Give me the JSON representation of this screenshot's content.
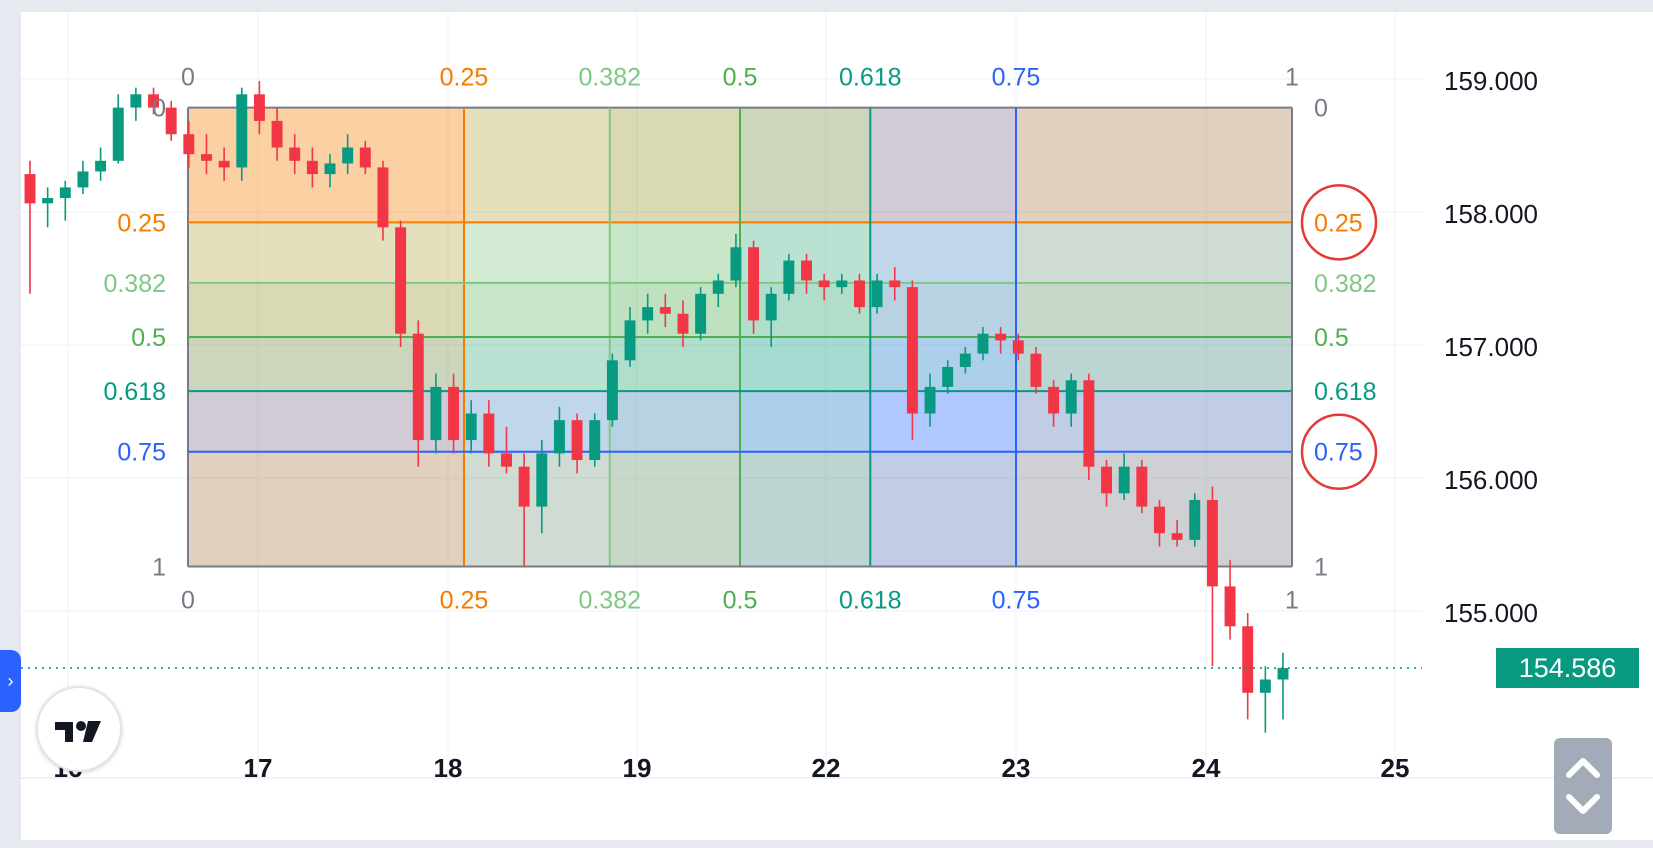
{
  "chart_data": {
    "type": "candlestick",
    "x_axis": {
      "tick_labels": [
        "16",
        "17",
        "18",
        "19",
        "22",
        "23",
        "24",
        "25"
      ]
    },
    "y_axis": {
      "tick_labels": [
        "159.000",
        "158.000",
        "157.000",
        "156.000",
        "155.000"
      ],
      "tick_values": [
        159.0,
        158.0,
        157.0,
        156.0,
        155.0
      ],
      "range": [
        153.7,
        159.5
      ]
    },
    "last_price": "154.586",
    "last_price_value": 154.586,
    "fib_box": {
      "price_top": 158.8,
      "price_bottom": 155.35,
      "levels": [
        {
          "label": "0",
          "value": 0,
          "color": "#787b86"
        },
        {
          "label": "0.25",
          "value": 0.25,
          "color": "#f57c00"
        },
        {
          "label": "0.382",
          "value": 0.382,
          "color": "#81c784"
        },
        {
          "label": "0.5",
          "value": 0.5,
          "color": "#4caf50"
        },
        {
          "label": "0.618",
          "value": 0.618,
          "color": "#089981"
        },
        {
          "label": "0.75",
          "value": 0.75,
          "color": "#2962ff"
        },
        {
          "label": "1",
          "value": 1,
          "color": "#787b86"
        }
      ]
    },
    "candles": [
      [
        158.3,
        158.4,
        157.4,
        158.08
      ],
      [
        158.08,
        158.2,
        157.9,
        158.12
      ],
      [
        158.12,
        158.25,
        157.95,
        158.2
      ],
      [
        158.2,
        158.4,
        158.15,
        158.32
      ],
      [
        158.32,
        158.5,
        158.25,
        158.4
      ],
      [
        158.4,
        158.9,
        158.38,
        158.8
      ],
      [
        158.8,
        158.95,
        158.7,
        158.9
      ],
      [
        158.9,
        158.95,
        158.75,
        158.8
      ],
      [
        158.8,
        158.85,
        158.55,
        158.6
      ],
      [
        158.6,
        158.7,
        158.35,
        158.45
      ],
      [
        158.45,
        158.6,
        158.3,
        158.4
      ],
      [
        158.4,
        158.5,
        158.25,
        158.35
      ],
      [
        158.35,
        158.95,
        158.25,
        158.9
      ],
      [
        158.9,
        159.0,
        158.6,
        158.7
      ],
      [
        158.7,
        158.8,
        158.4,
        158.5
      ],
      [
        158.5,
        158.6,
        158.3,
        158.4
      ],
      [
        158.4,
        158.5,
        158.2,
        158.3
      ],
      [
        158.3,
        158.45,
        158.2,
        158.38
      ],
      [
        158.38,
        158.6,
        158.3,
        158.5
      ],
      [
        158.5,
        158.55,
        158.3,
        158.35
      ],
      [
        158.35,
        158.4,
        157.8,
        157.9
      ],
      [
        157.9,
        157.95,
        157.0,
        157.1
      ],
      [
        157.1,
        157.2,
        156.1,
        156.3
      ],
      [
        156.3,
        156.8,
        156.2,
        156.7
      ],
      [
        156.7,
        156.8,
        156.2,
        156.3
      ],
      [
        156.3,
        156.6,
        156.2,
        156.5
      ],
      [
        156.5,
        156.6,
        156.1,
        156.2
      ],
      [
        156.2,
        156.4,
        156.05,
        156.1
      ],
      [
        156.1,
        156.2,
        155.35,
        155.8
      ],
      [
        155.8,
        156.3,
        155.6,
        156.2
      ],
      [
        156.2,
        156.55,
        156.1,
        156.45
      ],
      [
        156.45,
        156.5,
        156.05,
        156.15
      ],
      [
        156.15,
        156.5,
        156.1,
        156.45
      ],
      [
        156.45,
        156.95,
        156.4,
        156.9
      ],
      [
        156.9,
        157.3,
        156.85,
        157.2
      ],
      [
        157.2,
        157.4,
        157.1,
        157.3
      ],
      [
        157.3,
        157.4,
        157.15,
        157.25
      ],
      [
        157.25,
        157.35,
        157.0,
        157.1
      ],
      [
        157.1,
        157.45,
        157.05,
        157.4
      ],
      [
        157.4,
        157.55,
        157.3,
        157.5
      ],
      [
        157.5,
        157.85,
        157.45,
        157.75
      ],
      [
        157.75,
        157.8,
        157.1,
        157.2
      ],
      [
        157.2,
        157.45,
        157.0,
        157.4
      ],
      [
        157.4,
        157.7,
        157.35,
        157.65
      ],
      [
        157.65,
        157.7,
        157.4,
        157.5
      ],
      [
        157.5,
        157.55,
        157.35,
        157.45
      ],
      [
        157.45,
        157.55,
        157.4,
        157.5
      ],
      [
        157.5,
        157.55,
        157.25,
        157.3
      ],
      [
        157.3,
        157.55,
        157.25,
        157.5
      ],
      [
        157.5,
        157.6,
        157.35,
        157.45
      ],
      [
        157.45,
        157.5,
        156.3,
        156.5
      ],
      [
        156.5,
        156.8,
        156.4,
        156.7
      ],
      [
        156.7,
        156.9,
        156.65,
        156.85
      ],
      [
        156.85,
        157.0,
        156.8,
        156.95
      ],
      [
        156.95,
        157.15,
        156.9,
        157.1
      ],
      [
        157.1,
        157.15,
        156.95,
        157.05
      ],
      [
        157.05,
        157.1,
        156.9,
        156.95
      ],
      [
        156.95,
        157.0,
        156.65,
        156.7
      ],
      [
        156.7,
        156.75,
        156.4,
        156.5
      ],
      [
        156.5,
        156.8,
        156.4,
        156.75
      ],
      [
        156.75,
        156.8,
        156.0,
        156.1
      ],
      [
        156.1,
        156.15,
        155.8,
        155.9
      ],
      [
        155.9,
        156.2,
        155.85,
        156.1
      ],
      [
        156.1,
        156.15,
        155.75,
        155.8
      ],
      [
        155.8,
        155.85,
        155.5,
        155.6
      ],
      [
        155.6,
        155.7,
        155.5,
        155.55
      ],
      [
        155.55,
        155.9,
        155.5,
        155.85
      ],
      [
        155.85,
        155.95,
        154.6,
        155.2
      ],
      [
        155.2,
        155.4,
        154.8,
        154.9
      ],
      [
        154.9,
        155.0,
        154.2,
        154.4
      ],
      [
        154.4,
        154.6,
        154.1,
        154.5
      ],
      [
        154.5,
        154.7,
        154.2,
        154.586
      ]
    ]
  },
  "ui": {
    "side_tab_glyph": "›",
    "scroll_up_glyph": "˄",
    "scroll_down_glyph": "˅"
  }
}
